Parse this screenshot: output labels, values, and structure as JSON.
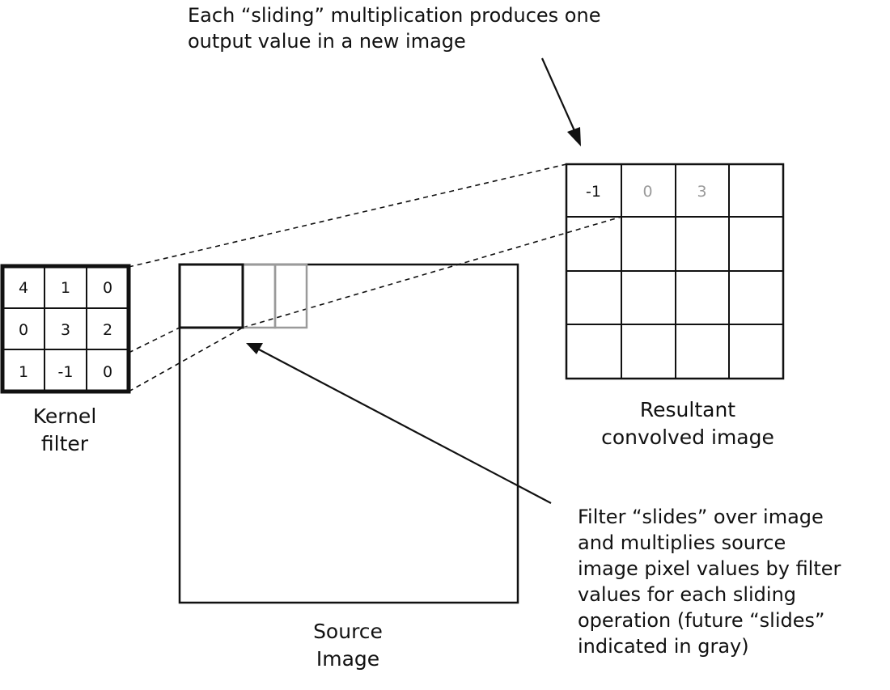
{
  "annotations": {
    "top": [
      "Each “sliding” multiplication produces one",
      "output value in a new image"
    ],
    "bottom_right": [
      "Filter “slides” over image",
      "and multiplies source",
      "image pixel values by filter",
      "values for each sliding",
      "operation (future “slides”",
      "indicated in gray)"
    ]
  },
  "labels": {
    "kernel": [
      "Kernel",
      "filter"
    ],
    "source": [
      "Source",
      "Image"
    ],
    "result": [
      "Resultant",
      "convolved image"
    ]
  },
  "kernel_values": [
    [
      "4",
      "1",
      "0"
    ],
    [
      "0",
      "3",
      "2"
    ],
    [
      "1",
      "-1",
      "0"
    ]
  ],
  "result_values": [
    {
      "text": "-1",
      "state": "current"
    },
    {
      "text": "0",
      "state": "future"
    },
    {
      "text": "3",
      "state": "future"
    }
  ],
  "colors": {
    "line": "#111111",
    "future": "#9a9a9a"
  }
}
